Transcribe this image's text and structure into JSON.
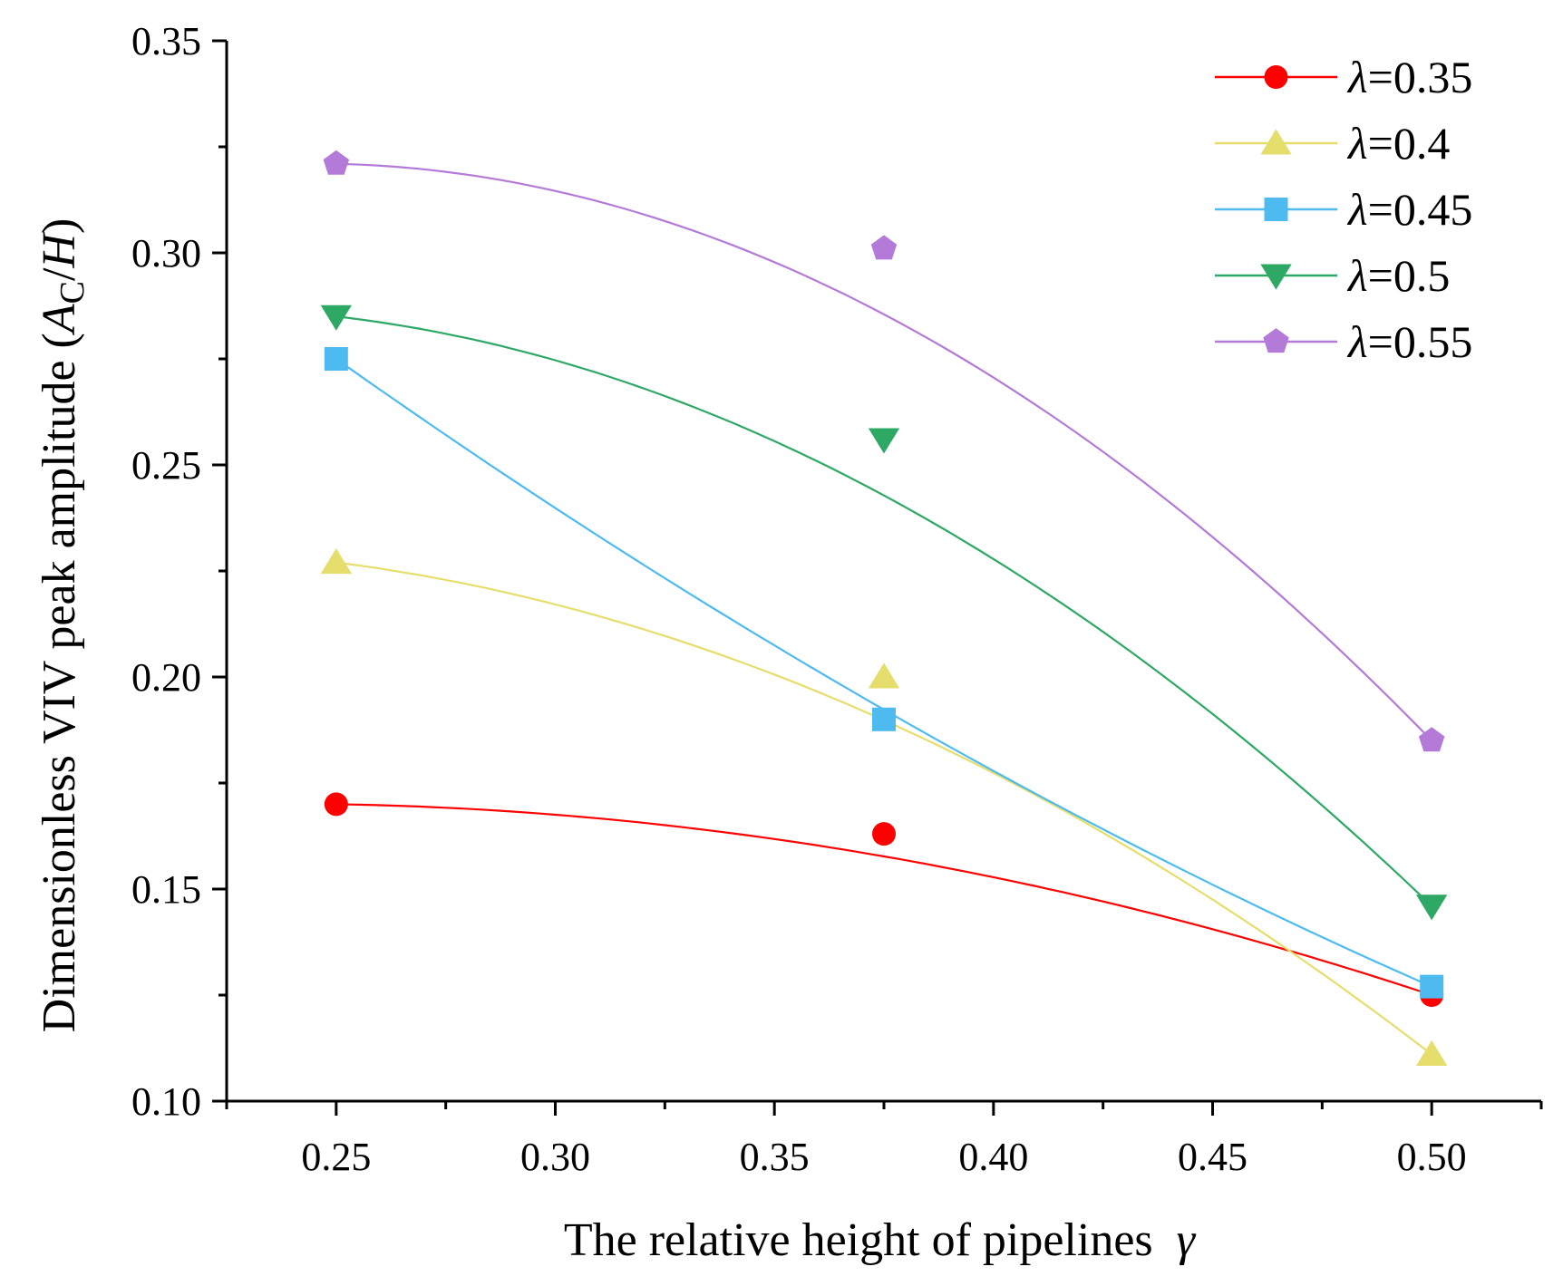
{
  "chart_data": {
    "type": "line",
    "xlabel": "The relative height of pipelines",
    "xlabel_symbol": "γ",
    "ylabel": "Dimensionless VIV peak amplitude (",
    "ylabel_symbol_A": "A",
    "ylabel_symbol_sub": "C",
    "ylabel_symbol_rest": "/",
    "ylabel_symbol_H": "H",
    "ylabel_close": ")",
    "xlim": [
      0.225,
      0.525
    ],
    "ylim": [
      0.1,
      0.35
    ],
    "xticks": [
      0.25,
      0.3,
      0.35,
      0.4,
      0.45,
      0.5
    ],
    "xtick_labels": [
      "0.25",
      "0.30",
      "0.35",
      "0.40",
      "0.45",
      "0.50"
    ],
    "yticks": [
      0.1,
      0.15,
      0.2,
      0.25,
      0.3,
      0.35
    ],
    "ytick_labels": [
      "0.10",
      "0.15",
      "0.20",
      "0.25",
      "0.30",
      "0.35"
    ],
    "legend_position": "top-right",
    "x": [
      0.25,
      0.375,
      0.5
    ],
    "series": [
      {
        "name_symbol": "λ",
        "name_value": "=0.35",
        "marker": "circle",
        "color": "#FF0000",
        "values": [
          0.17,
          0.163,
          0.125
        ],
        "fit": [
          0.17,
          0.1577,
          0.125
        ]
      },
      {
        "name_symbol": "λ",
        "name_value": "=0.4",
        "marker": "triangle-up",
        "color": "#E6DE6C",
        "values": [
          0.227,
          0.2,
          0.111
        ],
        "fit": [
          0.227,
          0.1898,
          0.111
        ]
      },
      {
        "name_symbol": "λ",
        "name_value": "=0.45",
        "marker": "square",
        "color": "#4DBBF0",
        "values": [
          0.275,
          0.19,
          0.127
        ],
        "fit": [
          0.275,
          0.1923,
          0.127
        ]
      },
      {
        "name_symbol": "λ",
        "name_value": "=0.5",
        "marker": "triangle-down",
        "color": "#2EA865",
        "values": [
          0.285,
          0.256,
          0.146
        ],
        "fit": [
          0.285,
          0.2428,
          0.146
        ]
      },
      {
        "name_symbol": "λ",
        "name_value": "=0.55",
        "marker": "pentagon",
        "color": "#B37AD8",
        "values": [
          0.321,
          0.301,
          0.185
        ],
        "fit": [
          0.321,
          0.2855,
          0.185
        ]
      }
    ]
  }
}
